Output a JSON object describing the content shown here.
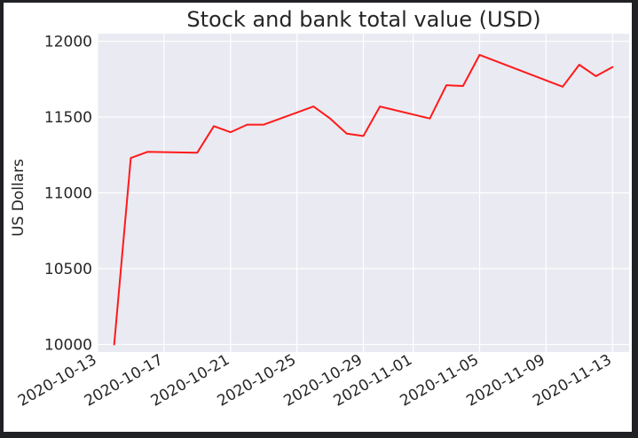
{
  "chart_data": {
    "type": "line",
    "title": "Stock and bank total value (USD)",
    "xlabel": "",
    "ylabel": "US Dollars",
    "grid": true,
    "legend": "none",
    "colors": {
      "background": "#eaeaf2",
      "grid": "#ffffff",
      "line": "#ff1a1a"
    },
    "x_range": [
      "2020-10-13",
      "2020-11-14"
    ],
    "ylim": [
      9950,
      12050
    ],
    "x_ticks": [
      "2020-10-13",
      "2020-10-17",
      "2020-10-21",
      "2020-10-25",
      "2020-10-29",
      "2020-11-01",
      "2020-11-05",
      "2020-11-09",
      "2020-11-13"
    ],
    "y_ticks": [
      10000,
      10500,
      11000,
      11500,
      12000
    ],
    "series": [
      {
        "x": [
          "2020-10-14",
          "2020-10-15",
          "2020-10-16",
          "2020-10-19",
          "2020-10-20",
          "2020-10-21",
          "2020-10-22",
          "2020-10-23",
          "2020-10-26",
          "2020-10-27",
          "2020-10-28",
          "2020-10-29",
          "2020-10-30",
          "2020-11-02",
          "2020-11-03",
          "2020-11-04",
          "2020-11-05",
          "2020-11-10",
          "2020-11-11",
          "2020-11-12",
          "2020-11-13"
        ],
        "y": [
          10000,
          11230,
          11270,
          11265,
          11440,
          11400,
          11450,
          11450,
          11570,
          11490,
          11390,
          11375,
          11570,
          11490,
          11710,
          11705,
          11910,
          11700,
          11845,
          11770,
          11830
        ]
      }
    ]
  }
}
